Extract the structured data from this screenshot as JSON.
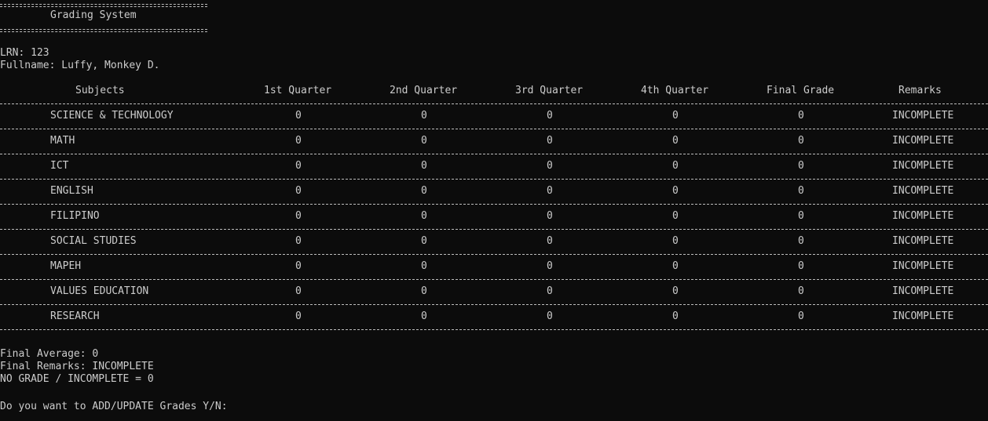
{
  "banner": {
    "title": "Grading System"
  },
  "student": {
    "lrn_label": "LRN: 123",
    "fullname_label": "Fullname: Luffy, Monkey D."
  },
  "table": {
    "headers": [
      "Subjects",
      "1st Quarter",
      "2nd Quarter",
      "3rd Quarter",
      "4th Quarter",
      "Final Grade",
      "Remarks"
    ],
    "rows": [
      {
        "subject": "SCIENCE & TECHNOLOGY",
        "q1": "0",
        "q2": "0",
        "q3": "0",
        "q4": "0",
        "final": "0",
        "remarks": "INCOMPLETE"
      },
      {
        "subject": "MATH",
        "q1": "0",
        "q2": "0",
        "q3": "0",
        "q4": "0",
        "final": "0",
        "remarks": "INCOMPLETE"
      },
      {
        "subject": "ICT",
        "q1": "0",
        "q2": "0",
        "q3": "0",
        "q4": "0",
        "final": "0",
        "remarks": "INCOMPLETE"
      },
      {
        "subject": "ENGLISH",
        "q1": "0",
        "q2": "0",
        "q3": "0",
        "q4": "0",
        "final": "0",
        "remarks": "INCOMPLETE"
      },
      {
        "subject": "FILIPINO",
        "q1": "0",
        "q2": "0",
        "q3": "0",
        "q4": "0",
        "final": "0",
        "remarks": "INCOMPLETE"
      },
      {
        "subject": "SOCIAL STUDIES",
        "q1": "0",
        "q2": "0",
        "q3": "0",
        "q4": "0",
        "final": "0",
        "remarks": "INCOMPLETE"
      },
      {
        "subject": "MAPEH",
        "q1": "0",
        "q2": "0",
        "q3": "0",
        "q4": "0",
        "final": "0",
        "remarks": "INCOMPLETE"
      },
      {
        "subject": "VALUES EDUCATION",
        "q1": "0",
        "q2": "0",
        "q3": "0",
        "q4": "0",
        "final": "0",
        "remarks": "INCOMPLETE"
      },
      {
        "subject": "RESEARCH",
        "q1": "0",
        "q2": "0",
        "q3": "0",
        "q4": "0",
        "final": "0",
        "remarks": "INCOMPLETE"
      }
    ]
  },
  "summary": {
    "final_average": "Final Average: 0",
    "final_remarks": "Final Remarks: INCOMPLETE",
    "legend": "NO GRADE / INCOMPLETE = 0"
  },
  "prompt": {
    "text": "Do you want to ADD/UPDATE Grades Y/N:"
  },
  "colors": {
    "background": "#0c0c0c",
    "foreground": "#cccccc"
  }
}
